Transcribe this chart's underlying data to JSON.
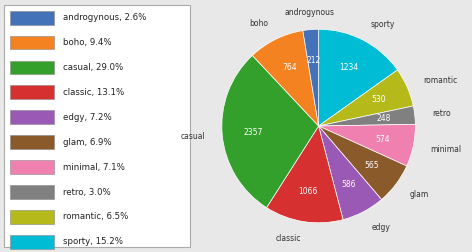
{
  "categories": [
    "androgynous",
    "boho",
    "casual",
    "classic",
    "edgy",
    "glam",
    "minimal",
    "retro",
    "romantic",
    "sporty"
  ],
  "values": [
    212,
    764,
    2357,
    1066,
    586,
    565,
    574,
    248,
    530,
    1234
  ],
  "percentages": [
    2.6,
    9.4,
    29.0,
    13.1,
    7.2,
    6.9,
    7.1,
    3.0,
    6.5,
    15.2
  ],
  "colors": [
    "#4472b8",
    "#f58220",
    "#33a02c",
    "#d63030",
    "#9b59b6",
    "#8b5a2b",
    "#f080b0",
    "#808080",
    "#b5ba1a",
    "#00bcd4"
  ],
  "legend_order": [
    "androgynous",
    "boho",
    "casual",
    "classic",
    "edgy",
    "glam",
    "minimal",
    "retro",
    "romantic",
    "sporty"
  ],
  "pie_order": [
    "sporty",
    "romantic",
    "retro",
    "minimal",
    "glam",
    "edgy",
    "classic",
    "casual",
    "boho",
    "androgynous"
  ],
  "background_color": "#e8e8e8"
}
